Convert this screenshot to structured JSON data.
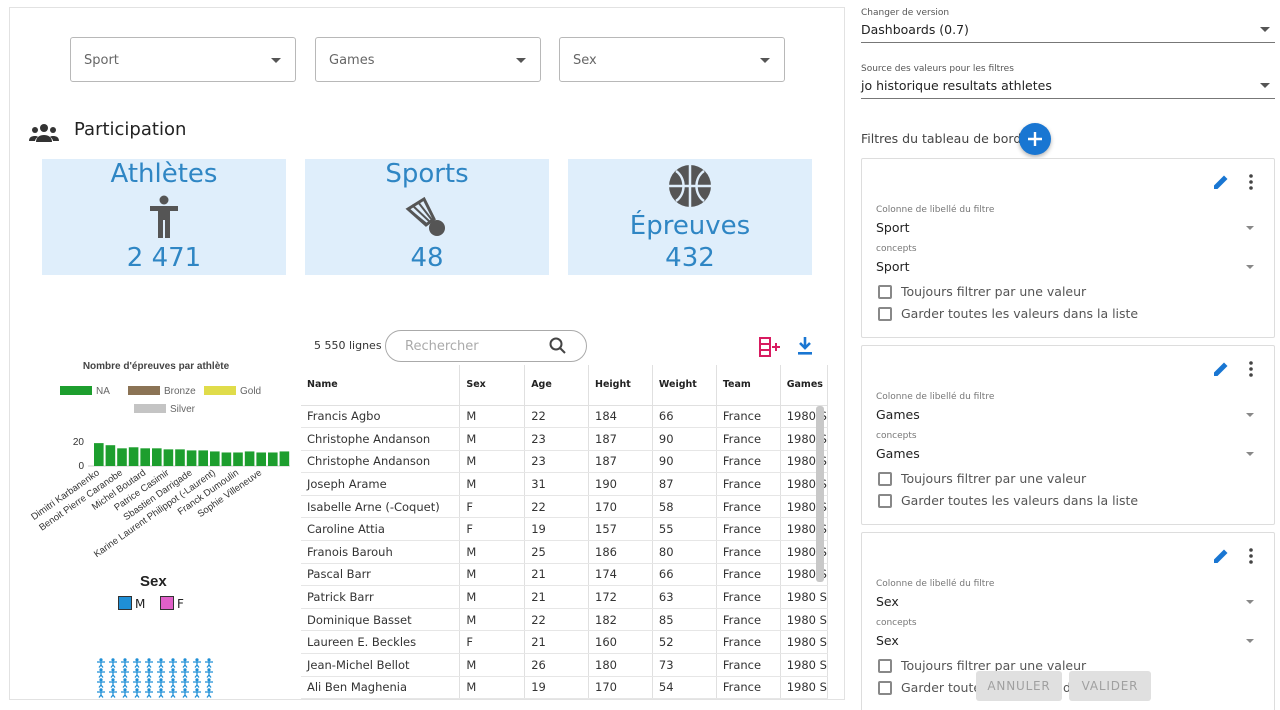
{
  "filters_bar": {
    "sport_placeholder": "Sport",
    "games_placeholder": "Games",
    "sex_placeholder": "Sex"
  },
  "participation": {
    "title": "Participation",
    "kpis": [
      {
        "label": "Athlètes",
        "value": "2 471",
        "icon": "person-icon"
      },
      {
        "label": "Sports",
        "value": "48",
        "icon": "shuttlecock-icon"
      },
      {
        "label": "Épreuves",
        "value": "432",
        "icon": "basketball-icon"
      }
    ]
  },
  "table": {
    "row_count": "5 550 lignes",
    "search_placeholder": "Rechercher",
    "columns": [
      "Name",
      "Sex",
      "Age",
      "Height",
      "Weight",
      "Team",
      "Games"
    ],
    "rows": [
      [
        "Francis Agbo",
        "M",
        "22",
        "184",
        "66",
        "France",
        "1980 S"
      ],
      [
        "Christophe Andanson",
        "M",
        "23",
        "187",
        "90",
        "France",
        "1980 S"
      ],
      [
        "Christophe Andanson",
        "M",
        "23",
        "187",
        "90",
        "France",
        "1980 S"
      ],
      [
        "Joseph Arame",
        "M",
        "31",
        "190",
        "87",
        "France",
        "1980 S"
      ],
      [
        "Isabelle Arne (-Coquet)",
        "F",
        "22",
        "170",
        "58",
        "France",
        "1980 S"
      ],
      [
        "Caroline Attia",
        "F",
        "19",
        "157",
        "55",
        "France",
        "1980 S"
      ],
      [
        "Franois Barouh",
        "M",
        "25",
        "186",
        "80",
        "France",
        "1980 S"
      ],
      [
        "Pascal Barr",
        "M",
        "21",
        "174",
        "66",
        "France",
        "1980 S"
      ],
      [
        "Patrick Barr",
        "M",
        "21",
        "172",
        "63",
        "France",
        "1980 S"
      ],
      [
        "Dominique Basset",
        "M",
        "22",
        "182",
        "85",
        "France",
        "1980 S"
      ],
      [
        "Laureen E. Beckles",
        "F",
        "21",
        "160",
        "52",
        "France",
        "1980 S"
      ],
      [
        "Jean-Michel Bellot",
        "M",
        "26",
        "180",
        "73",
        "France",
        "1980 S"
      ],
      [
        "Ali Ben Maghenia",
        "M",
        "19",
        "170",
        "54",
        "France",
        "1980 S"
      ]
    ]
  },
  "chart_data": {
    "type": "bar",
    "title": "Nombre d'épreuves par athlète",
    "legend": [
      "NA",
      "Bronze",
      "Gold",
      "Silver"
    ],
    "legend_position": "top",
    "series_colors": {
      "NA": "#1d9e2e",
      "Bronze": "#8b7355",
      "Gold": "#e0dc4a",
      "Silver": "#c4c4c4"
    },
    "categories": [
      "Dimitri Karbanenko",
      "Benoit Pierre Caranobe",
      "Michel Boutard",
      "Patrice Casimir",
      "Sbastien Darrigade",
      "Karine Laurent Philippot (-Laurent)",
      "Franck Dumoulin",
      "Sophie Villeneuve"
    ],
    "ytick_labels": [
      "20",
      "0"
    ],
    "values_all_bars": [
      22,
      20,
      17,
      18,
      17,
      17,
      16,
      16,
      15,
      15,
      14,
      13,
      13,
      14,
      13,
      13,
      14
    ],
    "ylim": [
      0,
      25
    ],
    "xlabel": "",
    "ylabel": ""
  },
  "sex_legend": {
    "title": "Sex",
    "items": [
      {
        "label": "M",
        "color": "#1f8fd6"
      },
      {
        "label": "F",
        "color": "#e060c8"
      }
    ]
  },
  "panel": {
    "version_label": "Changer de version",
    "version_value": "Dashboards (0.7)",
    "source_label": "Source des valeurs pour les filtres",
    "source_value": "jo historique resultats athletes",
    "filters_title": "Filtres du tableau de bord",
    "cards": [
      {
        "column_label": "Colonne de libellé du filtre",
        "column_value": "Sport",
        "concepts_label": "concepts",
        "concepts_value": "Sport",
        "check1": "Toujours filtrer par une valeur",
        "check2": "Garder toutes les valeurs dans la liste"
      },
      {
        "column_label": "Colonne de libellé du filtre",
        "column_value": "Games",
        "concepts_label": "concepts",
        "concepts_value": "Games",
        "check1": "Toujours filtrer par une valeur",
        "check2": "Garder toutes les valeurs dans la liste"
      },
      {
        "column_label": "Colonne de libellé du filtre",
        "column_value": "Sex",
        "concepts_label": "concepts",
        "concepts_value": "Sex",
        "check1": "Toujours filtrer par une valeur",
        "check2": "Garder toutes les valeurs dans la liste"
      }
    ],
    "cancel_label": "ANNULER",
    "validate_label": "VALIDER"
  },
  "colors": {
    "accent": "#1976d2",
    "kpi_bg": "#dfeefb",
    "kpi_text": "#2f86c4",
    "addcol": "#d81b60"
  }
}
